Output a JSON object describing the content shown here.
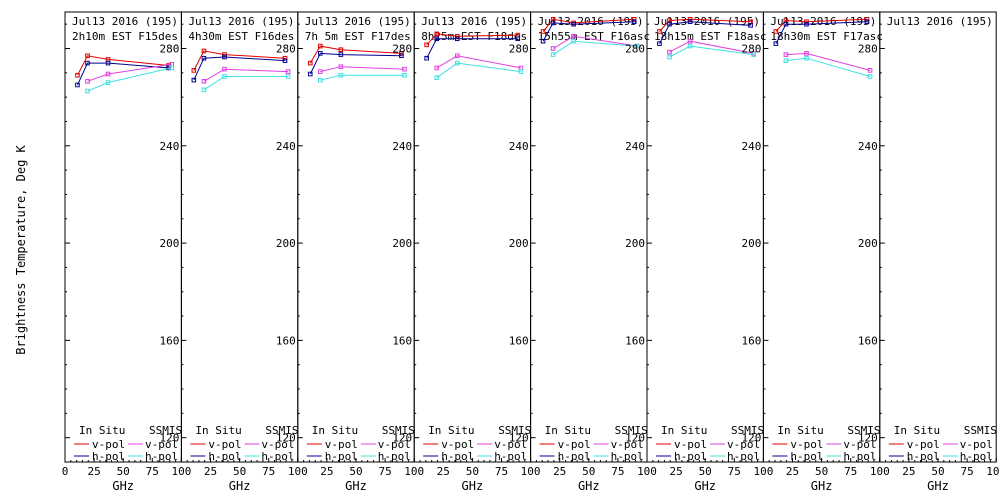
{
  "figure": {
    "ylabel": "Brightness Temperature, Deg K",
    "xlabel": "GHz"
  },
  "legend": {
    "insitu_title": "In Situ",
    "ssmis_title": "SSMIS",
    "vpol": "v-pol",
    "hpol": "h-pol"
  },
  "colors": {
    "insitu_v": "#e00000",
    "insitu_h": "#000090",
    "ssmis_v": "#e040e0",
    "ssmis_h": "#40e0e0"
  },
  "chart_data": [
    {
      "type": "line",
      "title": "Jul13 2016 (195)",
      "subtitle": "2h10m EST F15des",
      "xlim": [
        0,
        100
      ],
      "ylim": [
        110,
        295
      ],
      "xticks": [
        "0",
        "25",
        "50",
        "75",
        "100"
      ],
      "yticks": [],
      "series": [
        {
          "name": "In Situ v-pol",
          "x": [
            10.7,
            19.35,
            37,
            89
          ],
          "y": [
            269,
            277,
            275.5,
            273
          ]
        },
        {
          "name": "In Situ h-pol",
          "x": [
            10.7,
            19.35,
            37,
            89
          ],
          "y": [
            265,
            274,
            274,
            272
          ]
        },
        {
          "name": "SSMIS v-pol",
          "x": [
            19.35,
            37,
            91.65
          ],
          "y": [
            266.5,
            269.5,
            273.5
          ]
        },
        {
          "name": "SSMIS h-pol",
          "x": [
            19.35,
            37,
            91.65
          ],
          "y": [
            262.5,
            266,
            272
          ]
        }
      ]
    },
    {
      "type": "line",
      "title": "Jul13 2016 (195)",
      "subtitle": "4h30m EST F16des",
      "xlim": [
        0,
        100
      ],
      "ylim": [
        110,
        295
      ],
      "xticks": [
        "25",
        "50",
        "75",
        "100"
      ],
      "yticks": [
        "280",
        "240",
        "200",
        "160",
        "120"
      ],
      "series": [
        {
          "name": "In Situ v-pol",
          "x": [
            10.7,
            19.35,
            37,
            89
          ],
          "y": [
            271,
            279,
            277.5,
            276
          ]
        },
        {
          "name": "In Situ h-pol",
          "x": [
            10.7,
            19.35,
            37,
            89
          ],
          "y": [
            267,
            276,
            276.5,
            275
          ]
        },
        {
          "name": "SSMIS v-pol",
          "x": [
            19.35,
            37,
            91.65
          ],
          "y": [
            266.5,
            271.5,
            270.5
          ]
        },
        {
          "name": "SSMIS h-pol",
          "x": [
            19.35,
            37,
            91.65
          ],
          "y": [
            263,
            268.5,
            268.5
          ]
        }
      ]
    },
    {
      "type": "line",
      "title": "Jul13 2016 (195)",
      "subtitle": "7h 5m EST F17des",
      "xlim": [
        0,
        100
      ],
      "ylim": [
        110,
        295
      ],
      "xticks": [
        "25",
        "50",
        "75",
        "100"
      ],
      "yticks": [
        "280",
        "240",
        "200",
        "160",
        "120"
      ],
      "series": [
        {
          "name": "In Situ v-pol",
          "x": [
            10.7,
            19.35,
            37,
            89
          ],
          "y": [
            274,
            281,
            279.5,
            278
          ]
        },
        {
          "name": "In Situ h-pol",
          "x": [
            10.7,
            19.35,
            37,
            89
          ],
          "y": [
            269.5,
            278,
            277.5,
            277
          ]
        },
        {
          "name": "SSMIS v-pol",
          "x": [
            19.35,
            37,
            91.65
          ],
          "y": [
            270.5,
            272.5,
            271.5
          ]
        },
        {
          "name": "SSMIS h-pol",
          "x": [
            19.35,
            37,
            91.65
          ],
          "y": [
            267,
            269,
            269
          ]
        }
      ]
    },
    {
      "type": "line",
      "title": "Jul13 2016 (195)",
      "subtitle": "8h25m EST F18des",
      "xlim": [
        0,
        100
      ],
      "ylim": [
        110,
        295
      ],
      "xticks": [
        "25",
        "50",
        "75",
        "100"
      ],
      "yticks": [
        "280",
        "240",
        "200",
        "160",
        "120"
      ],
      "series": [
        {
          "name": "In Situ v-pol",
          "x": [
            10.7,
            19.35,
            37,
            89
          ],
          "y": [
            281.5,
            286,
            285,
            285.5
          ]
        },
        {
          "name": "In Situ h-pol",
          "x": [
            10.7,
            19.35,
            37,
            89
          ],
          "y": [
            276,
            284,
            284,
            284
          ]
        },
        {
          "name": "SSMIS v-pol",
          "x": [
            19.35,
            37,
            91.65
          ],
          "y": [
            272,
            277,
            272
          ]
        },
        {
          "name": "SSMIS h-pol",
          "x": [
            19.35,
            37,
            91.65
          ],
          "y": [
            268,
            274,
            270.5
          ]
        }
      ]
    },
    {
      "type": "line",
      "title": "Jul13 2016 (195)",
      "subtitle": "15h55m EST F16asc",
      "xlim": [
        0,
        100
      ],
      "ylim": [
        110,
        295
      ],
      "xticks": [
        "25",
        "50",
        "75",
        "100"
      ],
      "yticks": [
        "280",
        "240",
        "200",
        "160",
        "120"
      ],
      "series": [
        {
          "name": "In Situ v-pol",
          "x": [
            10.7,
            19.35,
            37,
            89
          ],
          "y": [
            287,
            292,
            290.5,
            292
          ]
        },
        {
          "name": "In Situ h-pol",
          "x": [
            10.7,
            19.35,
            37,
            89
          ],
          "y": [
            283,
            290.5,
            290,
            291
          ]
        },
        {
          "name": "SSMIS v-pol",
          "x": [
            19.35,
            37,
            91.65
          ],
          "y": [
            280,
            285,
            281
          ]
        },
        {
          "name": "SSMIS h-pol",
          "x": [
            19.35,
            37,
            91.65
          ],
          "y": [
            277.5,
            283,
            281
          ]
        }
      ]
    },
    {
      "type": "line",
      "title": "Jul13 2016 (195)",
      "subtitle": "18h15m EST F18asc",
      "xlim": [
        0,
        100
      ],
      "ylim": [
        110,
        295
      ],
      "xticks": [
        "25",
        "50",
        "75",
        "100"
      ],
      "yticks": [
        "280",
        "240",
        "200",
        "160",
        "120"
      ],
      "series": [
        {
          "name": "In Situ v-pol",
          "x": [
            10.7,
            19.35,
            37,
            89
          ],
          "y": [
            287,
            291.5,
            292,
            291
          ]
        },
        {
          "name": "In Situ h-pol",
          "x": [
            10.7,
            19.35,
            37,
            89
          ],
          "y": [
            282,
            290,
            291,
            289.5
          ]
        },
        {
          "name": "SSMIS v-pol",
          "x": [
            19.35,
            37,
            91.65
          ],
          "y": [
            278.5,
            283,
            278
          ]
        },
        {
          "name": "SSMIS h-pol",
          "x": [
            19.35,
            37,
            91.65
          ],
          "y": [
            276.5,
            281,
            277.5
          ]
        }
      ]
    },
    {
      "type": "line",
      "title": "Jul13 2016 (195)",
      "subtitle": "18h30m EST F17asc",
      "xlim": [
        0,
        100
      ],
      "ylim": [
        110,
        295
      ],
      "xticks": [
        "25",
        "50",
        "75",
        "100"
      ],
      "yticks": [
        "280",
        "240",
        "200",
        "160",
        "120"
      ],
      "series": [
        {
          "name": "In Situ v-pol",
          "x": [
            10.7,
            19.35,
            37,
            89
          ],
          "y": [
            287,
            291.5,
            291,
            292
          ]
        },
        {
          "name": "In Situ h-pol",
          "x": [
            10.7,
            19.35,
            37,
            89
          ],
          "y": [
            282,
            290,
            290,
            291
          ]
        },
        {
          "name": "SSMIS v-pol",
          "x": [
            19.35,
            37,
            91.65
          ],
          "y": [
            277.5,
            278,
            271
          ]
        },
        {
          "name": "SSMIS h-pol",
          "x": [
            19.35,
            37,
            91.65
          ],
          "y": [
            275,
            276,
            268.5
          ]
        }
      ]
    },
    {
      "type": "line",
      "title": "Jul13 2016 (195)",
      "subtitle": "",
      "xlim": [
        0,
        100
      ],
      "ylim": [
        110,
        295
      ],
      "xticks": [
        "25",
        "50",
        "75",
        "100"
      ],
      "yticks": [
        "280",
        "240",
        "200",
        "160",
        "120"
      ],
      "series": []
    }
  ]
}
